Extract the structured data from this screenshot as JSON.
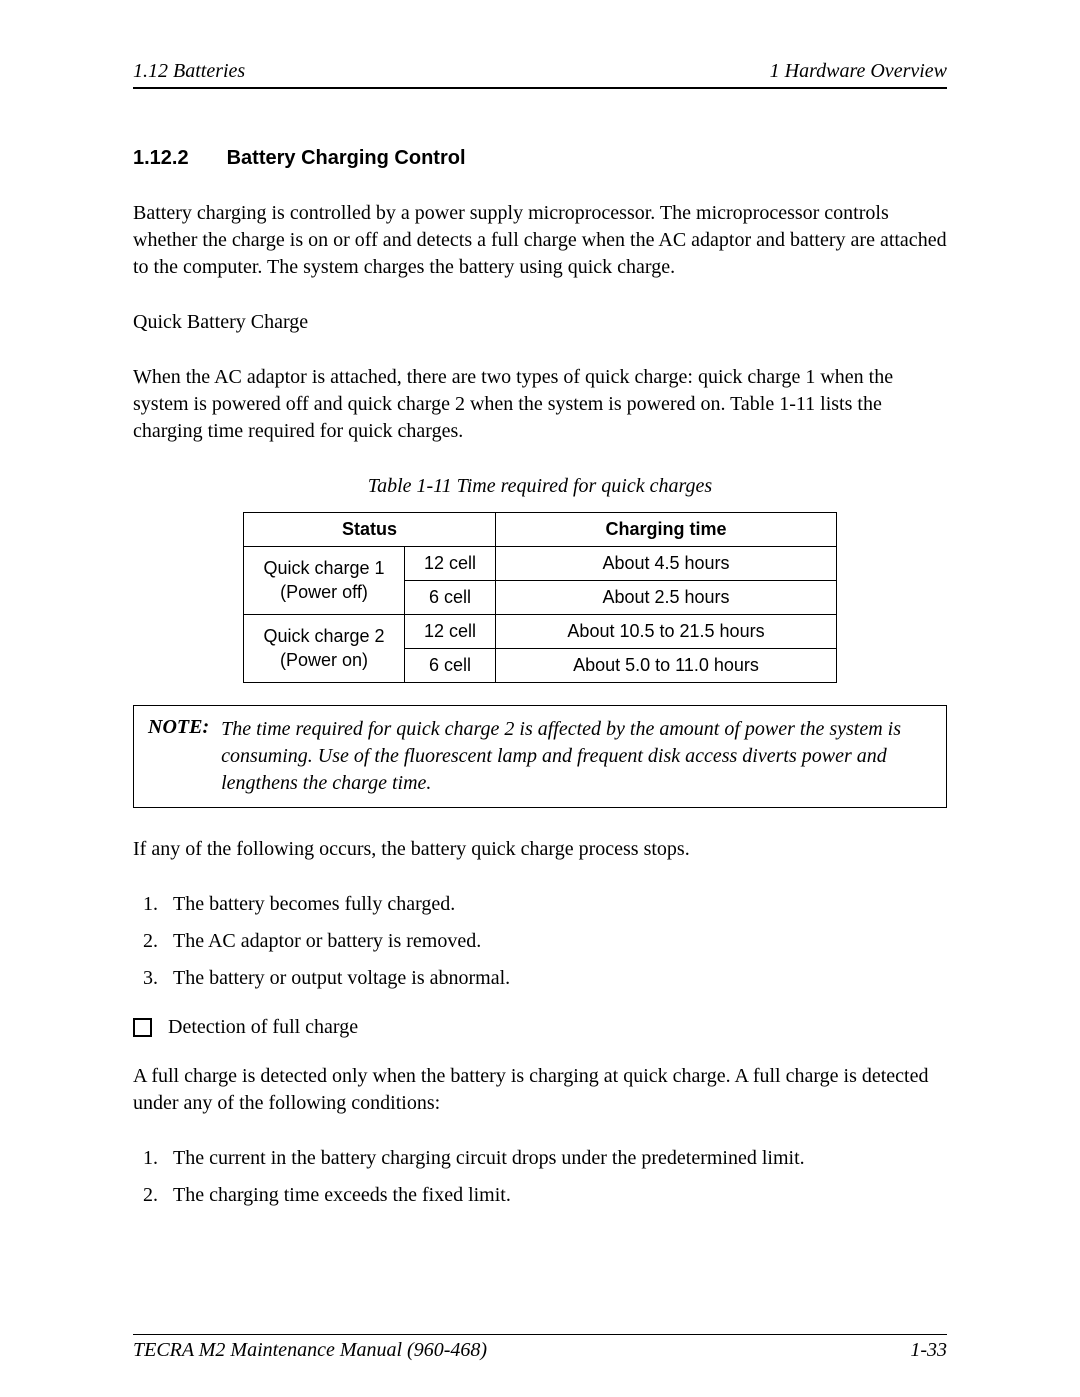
{
  "header": {
    "left": "1.12 Batteries",
    "right": "1  Hardware Overview"
  },
  "section": {
    "number": "1.12.2",
    "title": "Battery Charging Control"
  },
  "paragraphs": {
    "p1": "Battery charging is controlled by a power supply microprocessor. The microprocessor controls whether the charge is on or off and detects a full charge when the AC adaptor and battery are attached to the computer.  The system charges the battery using quick charge.",
    "p2": "Quick Battery Charge",
    "p3": "When the AC adaptor is attached, there are two types of quick charge: quick charge 1 when the system is powered off and quick charge 2 when the system is powered on. Table 1-11 lists the charging time required for quick charges.",
    "after_note": "If any of the following occurs, the battery quick charge process stops.",
    "bullet_text": "Detection of full charge",
    "p4": "A full charge is detected only when the battery is charging at quick charge. A full charge is detected under any of the following conditions:"
  },
  "table": {
    "caption": "Table 1-11   Time required for quick charges",
    "columns": {
      "col1": "Status",
      "col2": "Charging time"
    },
    "col_widths": {
      "status": 140,
      "cell": 70,
      "time": 320
    },
    "rows": [
      {
        "status_line1": "Quick charge 1",
        "status_line2": "(Power off)",
        "cell": "12 cell",
        "time": "About 4.5 hours"
      },
      {
        "cell": "6 cell",
        "time": "About 2.5 hours"
      },
      {
        "status_line1": "Quick charge 2",
        "status_line2": "(Power on)",
        "cell": "12 cell",
        "time": "About 10.5 to 21.5 hours"
      },
      {
        "cell": "6 cell",
        "time": "About 5.0 to 11.0 hours"
      }
    ]
  },
  "note": {
    "label": "NOTE:",
    "text": "The time required for quick charge 2 is affected by the amount of power the system is consuming.  Use of the fluorescent lamp and frequent disk access diverts power and lengthens the charge time."
  },
  "list1": {
    "i1": "The battery becomes fully charged.",
    "i2": "The AC adaptor or battery is removed.",
    "i3": "The battery or output voltage is abnormal."
  },
  "list2": {
    "i1": "The current in the battery charging circuit drops under the predetermined limit.",
    "i2": "The charging time exceeds the fixed limit."
  },
  "footer": {
    "left": "TECRA M2 Maintenance Manual (960-468)",
    "right": "1-33"
  }
}
